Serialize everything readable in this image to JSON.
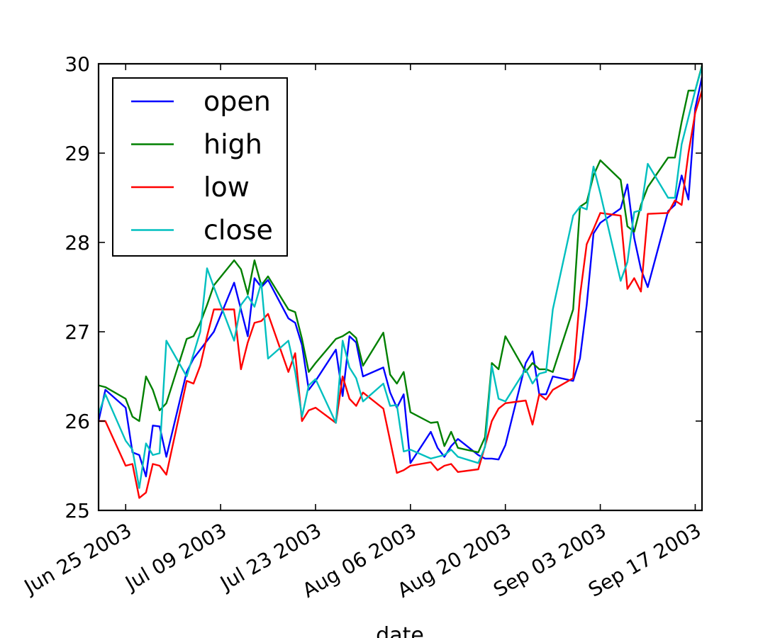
{
  "chart_data": {
    "type": "line",
    "title": "",
    "xlabel": "date",
    "ylabel": "",
    "xlim": [
      "2003-06-21",
      "2003-09-18"
    ],
    "ylim": [
      25,
      30
    ],
    "x_ticks": [
      "2003-06-25",
      "2003-07-09",
      "2003-07-23",
      "2003-08-06",
      "2003-08-20",
      "2003-09-03",
      "2003-09-17"
    ],
    "x_tick_labels": [
      "Jun 25 2003",
      "Jul 09 2003",
      "Jul 23 2003",
      "Aug 06 2003",
      "Aug 20 2003",
      "Sep 03 2003",
      "Sep 17 2003"
    ],
    "y_ticks": [
      25,
      26,
      27,
      28,
      29,
      30
    ],
    "y_tick_labels": [
      "25",
      "26",
      "27",
      "28",
      "29",
      "30"
    ],
    "grid": false,
    "legend_position": "top-left",
    "x": [
      "2003-06-21",
      "2003-06-22",
      "2003-06-25",
      "2003-06-26",
      "2003-06-27",
      "2003-06-28",
      "2003-06-29",
      "2003-06-30",
      "2003-07-01",
      "2003-07-04",
      "2003-07-05",
      "2003-07-06",
      "2003-07-07",
      "2003-07-08",
      "2003-07-11",
      "2003-07-12",
      "2003-07-13",
      "2003-07-14",
      "2003-07-15",
      "2003-07-16",
      "2003-07-19",
      "2003-07-20",
      "2003-07-21",
      "2003-07-22",
      "2003-07-23",
      "2003-07-26",
      "2003-07-27",
      "2003-07-28",
      "2003-07-29",
      "2003-07-30",
      "2003-08-02",
      "2003-08-03",
      "2003-08-04",
      "2003-08-05",
      "2003-08-06",
      "2003-08-09",
      "2003-08-10",
      "2003-08-11",
      "2003-08-12",
      "2003-08-13",
      "2003-08-16",
      "2003-08-17",
      "2003-08-18",
      "2003-08-19",
      "2003-08-20",
      "2003-08-23",
      "2003-08-24",
      "2003-08-25",
      "2003-08-26",
      "2003-08-27",
      "2003-08-30",
      "2003-08-31",
      "2003-09-01",
      "2003-09-02",
      "2003-09-03",
      "2003-09-06",
      "2003-09-07",
      "2003-09-08",
      "2003-09-09",
      "2003-09-10",
      "2003-09-13",
      "2003-09-14",
      "2003-09-15",
      "2003-09-16",
      "2003-09-17",
      "2003-09-18"
    ],
    "series": [
      {
        "name": "open",
        "color": "#0000ff",
        "values": [
          26.0,
          26.35,
          26.15,
          25.65,
          25.62,
          25.38,
          25.95,
          25.94,
          25.6,
          26.55,
          26.7,
          26.8,
          26.9,
          27.0,
          27.55,
          27.25,
          26.95,
          27.6,
          27.5,
          27.58,
          27.15,
          27.1,
          26.85,
          26.35,
          26.45,
          26.8,
          26.28,
          26.95,
          26.88,
          26.5,
          26.6,
          26.32,
          26.15,
          26.3,
          25.53,
          25.88,
          25.7,
          25.6,
          25.72,
          25.8,
          25.62,
          25.58,
          25.58,
          25.57,
          25.73,
          26.65,
          26.78,
          26.3,
          26.3,
          26.5,
          26.45,
          26.7,
          27.3,
          28.1,
          28.22,
          28.38,
          28.65,
          28.05,
          27.7,
          27.5,
          28.35,
          28.42,
          28.75,
          28.48,
          29.5,
          29.85
        ]
      },
      {
        "name": "high",
        "color": "#008000",
        "values": [
          26.4,
          26.38,
          26.25,
          26.05,
          26.0,
          26.5,
          26.35,
          26.12,
          26.2,
          26.92,
          26.95,
          27.1,
          27.3,
          27.52,
          27.8,
          27.7,
          27.42,
          27.8,
          27.52,
          27.62,
          27.25,
          27.22,
          26.92,
          26.55,
          26.65,
          26.92,
          26.95,
          27.0,
          26.93,
          26.62,
          26.99,
          26.52,
          26.42,
          26.55,
          26.1,
          25.98,
          25.99,
          25.72,
          25.88,
          25.7,
          25.65,
          25.82,
          26.65,
          26.58,
          26.95,
          26.55,
          26.65,
          26.58,
          26.58,
          26.55,
          27.25,
          28.4,
          28.45,
          28.75,
          28.92,
          28.7,
          28.18,
          28.12,
          28.42,
          28.62,
          28.95,
          28.95,
          29.35,
          29.7,
          29.7,
          29.98
        ]
      },
      {
        "name": "low",
        "color": "#ff0000",
        "values": [
          26.0,
          26.0,
          25.5,
          25.52,
          25.14,
          25.2,
          25.52,
          25.5,
          25.4,
          26.45,
          26.42,
          26.62,
          26.95,
          27.25,
          27.25,
          26.58,
          26.88,
          27.1,
          27.12,
          27.2,
          26.55,
          26.76,
          26.0,
          26.12,
          26.15,
          25.98,
          26.5,
          26.25,
          26.17,
          26.32,
          26.14,
          25.78,
          25.42,
          25.45,
          25.5,
          25.54,
          25.45,
          25.5,
          25.52,
          25.43,
          25.46,
          25.72,
          26.0,
          26.14,
          26.2,
          26.23,
          25.96,
          26.3,
          26.24,
          26.35,
          26.48,
          27.4,
          27.98,
          28.15,
          28.33,
          28.3,
          27.48,
          27.6,
          27.45,
          28.32,
          28.33,
          28.47,
          28.42,
          29.0,
          29.45,
          29.7
        ]
      },
      {
        "name": "close",
        "color": "#00bfbf",
        "values": [
          26.08,
          26.3,
          25.78,
          25.68,
          25.25,
          25.75,
          25.62,
          25.64,
          26.9,
          26.5,
          26.75,
          27.0,
          27.71,
          27.5,
          26.9,
          27.3,
          27.4,
          27.28,
          27.55,
          26.7,
          26.9,
          26.55,
          26.05,
          26.4,
          26.47,
          25.98,
          26.9,
          26.6,
          26.48,
          26.22,
          26.42,
          26.17,
          26.18,
          25.66,
          25.68,
          25.58,
          25.6,
          25.62,
          25.68,
          25.6,
          25.53,
          25.71,
          26.62,
          26.25,
          26.22,
          26.58,
          26.42,
          26.53,
          26.55,
          27.25,
          28.3,
          28.4,
          28.37,
          28.85,
          28.55,
          27.57,
          27.78,
          28.34,
          28.36,
          28.88,
          28.5,
          28.5,
          29.1,
          29.4,
          29.7,
          29.97
        ]
      }
    ]
  }
}
